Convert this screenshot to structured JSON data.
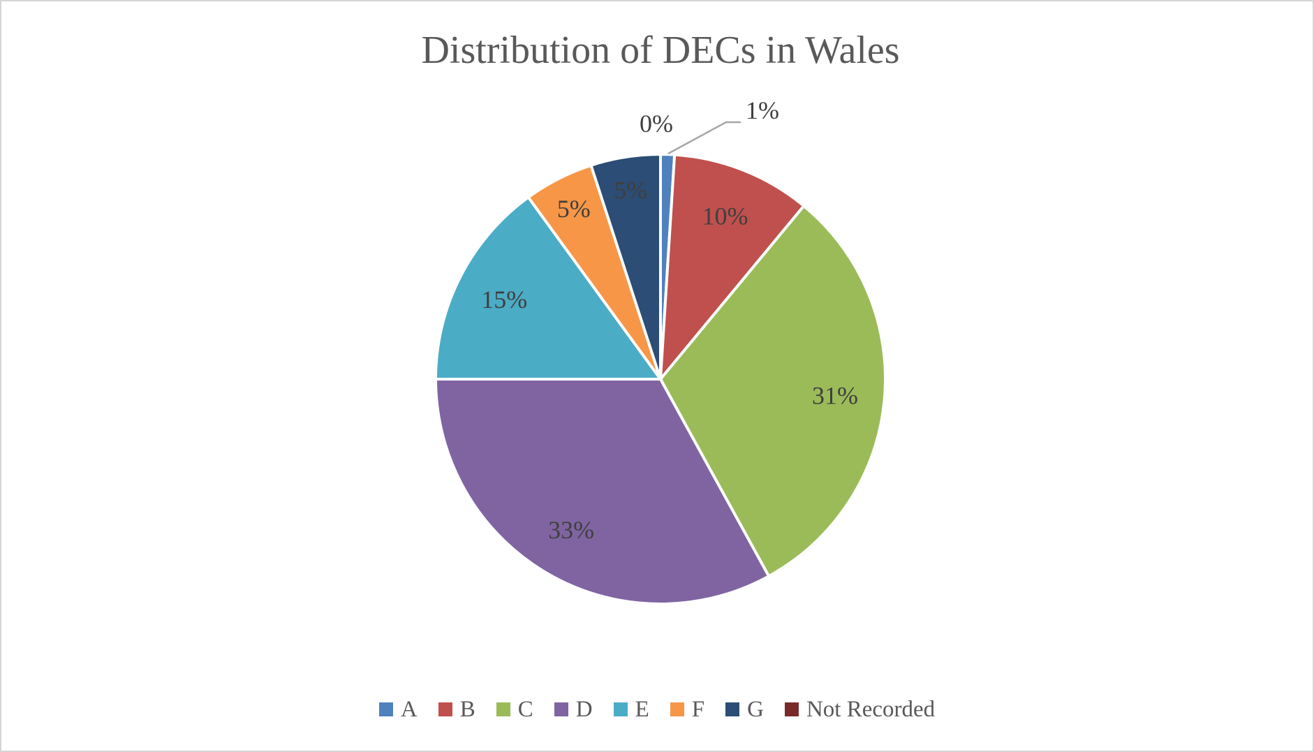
{
  "chart_data": {
    "type": "pie",
    "title": "Distribution of DECs in Wales",
    "categories": [
      "A",
      "B",
      "C",
      "D",
      "E",
      "F",
      "G",
      "Not Recorded"
    ],
    "values": [
      1,
      10,
      31,
      33,
      15,
      5,
      5,
      0
    ],
    "labels": [
      "1%",
      "10%",
      "31%",
      "33%",
      "15%",
      "5%",
      "5%",
      "0%"
    ],
    "colors": [
      "#4F81BD",
      "#C0504D",
      "#9BBB59",
      "#8064A2",
      "#4BACC6",
      "#F79646",
      "#2C4D75",
      "#772C2A"
    ],
    "start_angle_deg": 0,
    "direction": "clockwise",
    "legend_position": "bottom",
    "slice_border_color": "#FFFFFF",
    "title_color": "#595959",
    "data_label_color": "#3F3F3F",
    "legend_text_color": "#595959",
    "leader_line_color": "#A6A6A6",
    "frame_border_color": "#D5D5D5",
    "background_color": "#FFFFFF"
  }
}
